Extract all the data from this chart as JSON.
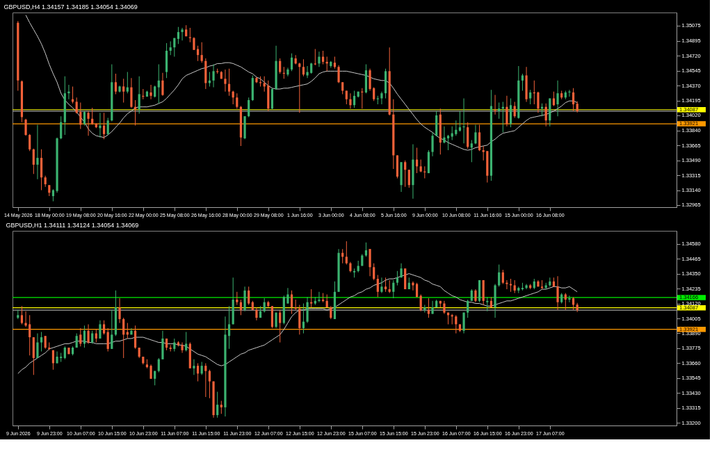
{
  "chart_data": [
    {
      "type": "candlestick",
      "title": "GBPUSD,H4  1.34157 1.34185 1.34054 1.34069",
      "categories": [
        "14 May 2026",
        null,
        null,
        null,
        null,
        null,
        null,
        null,
        "18 May 00:00",
        null,
        null,
        null,
        null,
        null,
        null,
        null,
        "19 May 08:00",
        null,
        null,
        null,
        null,
        null,
        null,
        null,
        "20 May 16:00",
        null,
        null,
        null,
        null,
        null,
        null,
        null,
        "22 May 00:00",
        null,
        null,
        null,
        null,
        null,
        null,
        null,
        "25 May 08:00",
        null,
        null,
        null,
        null,
        null,
        null,
        null,
        "26 May 16:00",
        null,
        null,
        null,
        null,
        null,
        null,
        null,
        "28 May 00:00",
        null,
        null,
        null,
        null,
        null,
        null,
        null,
        "29 May 08:00",
        null,
        null,
        null,
        null,
        null,
        null,
        null,
        "1 Jun 16:00",
        null,
        null,
        null,
        null,
        null,
        null,
        null,
        "3 Jun 00:00",
        null,
        null,
        null,
        null,
        null,
        null,
        null,
        "4 Jun 08:00",
        null,
        null,
        null,
        null,
        null,
        null,
        null,
        "5 Jun 16:00",
        null,
        null,
        null,
        null,
        null,
        null,
        null,
        "9 Jun 00:00",
        null,
        null,
        null,
        null,
        null,
        null,
        null,
        "10 Jun 08:00",
        null,
        null,
        null,
        null,
        null,
        null,
        null,
        "11 Jun 16:00",
        null,
        null,
        null,
        null,
        null,
        null,
        null,
        "15 Jun 00:00",
        null,
        null,
        null,
        null,
        null,
        null,
        null,
        "16 Jun 08:00",
        null,
        null,
        null,
        null,
        null,
        null,
        null
      ],
      "ohlc": [
        [
          1.3511,
          1.3513,
          1.3431,
          1.3443
        ],
        [
          1.3442,
          1.3443,
          1.3394,
          1.34
        ],
        [
          1.3397,
          1.3398,
          1.3378,
          1.3379
        ],
        [
          1.3379,
          1.338,
          1.336,
          1.3362
        ],
        [
          1.3362,
          1.3363,
          1.3333,
          1.3344
        ],
        [
          1.3344,
          1.3391,
          1.3327,
          1.3352
        ],
        [
          1.3352,
          1.3362,
          1.3314,
          1.3329
        ],
        [
          1.3329,
          1.3331,
          1.3318,
          1.3321
        ],
        [
          1.332,
          1.332,
          1.3307,
          1.3311
        ],
        [
          1.3307,
          1.3315,
          1.3301,
          1.3314
        ],
        [
          1.3313,
          1.3376,
          1.3311,
          1.3375
        ],
        [
          1.3375,
          1.3401,
          1.3374,
          1.3394
        ],
        [
          1.3394,
          1.3448,
          1.3379,
          1.3428
        ],
        [
          1.3428,
          1.3438,
          1.3421,
          1.343
        ],
        [
          1.3421,
          1.3436,
          1.3416,
          1.3418
        ],
        [
          1.3418,
          1.3423,
          1.3404,
          1.3405
        ],
        [
          1.3406,
          1.3417,
          1.3386,
          1.3391
        ],
        [
          1.3392,
          1.3407,
          1.339,
          1.3406
        ],
        [
          1.3405,
          1.3407,
          1.3378,
          1.3398
        ],
        [
          1.3398,
          1.3411,
          1.3391,
          1.3392
        ],
        [
          1.3392,
          1.3393,
          1.3387,
          1.3388
        ],
        [
          1.3387,
          1.3405,
          1.3376,
          1.339
        ],
        [
          1.339,
          1.3405,
          1.3374,
          1.338
        ],
        [
          1.338,
          1.3399,
          1.3379,
          1.3396
        ],
        [
          1.3396,
          1.3462,
          1.3395,
          1.3441
        ],
        [
          1.3441,
          1.3451,
          1.3427,
          1.343
        ],
        [
          1.343,
          1.3437,
          1.3429,
          1.3436
        ],
        [
          1.3436,
          1.3445,
          1.3417,
          1.343
        ],
        [
          1.343,
          1.3453,
          1.3428,
          1.3435
        ],
        [
          1.3435,
          1.3446,
          1.3411,
          1.3412
        ],
        [
          1.3412,
          1.342,
          1.339,
          1.3409
        ],
        [
          1.3409,
          1.3448,
          1.3404,
          1.3427
        ],
        [
          1.3425,
          1.3433,
          1.3421,
          1.3424
        ],
        [
          1.3424,
          1.3431,
          1.3424,
          1.343
        ],
        [
          1.3429,
          1.3438,
          1.3421,
          1.3425
        ],
        [
          1.3424,
          1.3437,
          1.3423,
          1.3436
        ],
        [
          1.3435,
          1.3462,
          1.3416,
          1.3443
        ],
        [
          1.3443,
          1.3452,
          1.3425,
          1.3426
        ],
        [
          1.3453,
          1.3487,
          1.3446,
          1.3478
        ],
        [
          1.3478,
          1.3489,
          1.3473,
          1.3482
        ],
        [
          1.3482,
          1.3493,
          1.3471,
          1.3493
        ],
        [
          1.3492,
          1.3506,
          1.3486,
          1.35
        ],
        [
          1.35,
          1.3505,
          1.349,
          1.3503
        ],
        [
          1.3503,
          1.3508,
          1.3495,
          1.3495
        ],
        [
          1.3494,
          1.3505,
          1.3488,
          1.3493
        ],
        [
          1.3493,
          1.3494,
          1.3479,
          1.3479
        ],
        [
          1.348,
          1.3484,
          1.3466,
          1.3473
        ],
        [
          1.3473,
          1.3488,
          1.3464,
          1.3466
        ],
        [
          1.3466,
          1.3469,
          1.3433,
          1.344
        ],
        [
          1.344,
          1.3453,
          1.3436,
          1.3443
        ],
        [
          1.3443,
          1.3462,
          1.3435,
          1.3454
        ],
        [
          1.3454,
          1.3457,
          1.3451,
          1.3453
        ],
        [
          1.3453,
          1.3454,
          1.3445,
          1.3445
        ],
        [
          1.3445,
          1.3456,
          1.343,
          1.3439
        ],
        [
          1.3439,
          1.3457,
          1.3425,
          1.343
        ],
        [
          1.343,
          1.3431,
          1.3415,
          1.3423
        ],
        [
          1.3423,
          1.3428,
          1.341,
          1.3412
        ],
        [
          1.3412,
          1.3413,
          1.3366,
          1.3376
        ],
        [
          1.3375,
          1.3401,
          1.3374,
          1.3401
        ],
        [
          1.3401,
          1.3423,
          1.34,
          1.342
        ],
        [
          1.342,
          1.3449,
          1.3419,
          1.3446
        ],
        [
          1.3446,
          1.3447,
          1.344,
          1.3441
        ],
        [
          1.3441,
          1.3448,
          1.3436,
          1.344
        ],
        [
          1.344,
          1.3448,
          1.343,
          1.3436
        ],
        [
          1.3437,
          1.3443,
          1.3407,
          1.341
        ],
        [
          1.341,
          1.3434,
          1.3409,
          1.3433
        ],
        [
          1.3433,
          1.3484,
          1.3432,
          1.3466
        ],
        [
          1.3466,
          1.3469,
          1.3451,
          1.3453
        ],
        [
          1.3452,
          1.3459,
          1.3445,
          1.3451
        ],
        [
          1.345,
          1.3458,
          1.3448,
          1.3456
        ],
        [
          1.3456,
          1.3475,
          1.3454,
          1.347
        ],
        [
          1.3469,
          1.3473,
          1.3462,
          1.3463
        ],
        [
          1.3463,
          1.3464,
          1.3405,
          1.3459
        ],
        [
          1.3459,
          1.3468,
          1.3448,
          1.345
        ],
        [
          1.3449,
          1.346,
          1.3446,
          1.3453
        ],
        [
          1.3452,
          1.3464,
          1.3451,
          1.3463
        ],
        [
          1.3463,
          1.348,
          1.3461,
          1.3462
        ],
        [
          1.3463,
          1.3477,
          1.3459,
          1.3471
        ],
        [
          1.3471,
          1.3478,
          1.3462,
          1.3465
        ],
        [
          1.3465,
          1.3471,
          1.3454,
          1.3463
        ],
        [
          1.346,
          1.3466,
          1.3458,
          1.3465
        ],
        [
          1.3464,
          1.3471,
          1.3457,
          1.3459
        ],
        [
          1.3459,
          1.3461,
          1.344,
          1.3441
        ],
        [
          1.3441,
          1.3441,
          1.3427,
          1.3431
        ],
        [
          1.3431,
          1.3431,
          1.3415,
          1.3421
        ],
        [
          1.3421,
          1.3428,
          1.341,
          1.3414
        ],
        [
          1.3414,
          1.3431,
          1.3411,
          1.3425
        ],
        [
          1.3424,
          1.343,
          1.3423,
          1.343
        ],
        [
          1.343,
          1.3434,
          1.341,
          1.3429
        ],
        [
          1.3429,
          1.3462,
          1.3428,
          1.3455
        ],
        [
          1.3455,
          1.3457,
          1.3431,
          1.3433
        ],
        [
          1.3434,
          1.3435,
          1.3419,
          1.3421
        ],
        [
          1.3421,
          1.3425,
          1.3415,
          1.3422
        ],
        [
          1.3422,
          1.343,
          1.3415,
          1.3428
        ],
        [
          1.3428,
          1.3457,
          1.3422,
          1.3454
        ],
        [
          1.3454,
          1.3482,
          1.3402,
          1.3403
        ],
        [
          1.3403,
          1.3421,
          1.3339,
          1.3355
        ],
        [
          1.3355,
          1.3355,
          1.3328,
          1.333
        ],
        [
          1.332,
          1.3347,
          1.3312,
          1.3347
        ],
        [
          1.3347,
          1.3349,
          1.3318,
          1.3338
        ],
        [
          1.3338,
          1.3338,
          1.3317,
          1.332
        ],
        [
          1.332,
          1.3368,
          1.3304,
          1.335
        ],
        [
          1.335,
          1.3364,
          1.3334,
          1.3342
        ],
        [
          1.3342,
          1.335,
          1.3335,
          1.3336
        ],
        [
          1.3336,
          1.3342,
          1.3328,
          1.3335
        ],
        [
          1.3334,
          1.3361,
          1.3334,
          1.3359
        ],
        [
          1.3359,
          1.3382,
          1.3354,
          1.3378
        ],
        [
          1.3378,
          1.3407,
          1.3378,
          1.3402
        ],
        [
          1.3403,
          1.341,
          1.3356,
          1.337
        ],
        [
          1.337,
          1.3389,
          1.3369,
          1.3376
        ],
        [
          1.3375,
          1.3379,
          1.3361,
          1.3378
        ],
        [
          1.3377,
          1.3389,
          1.3373,
          1.3381
        ],
        [
          1.338,
          1.3396,
          1.3378,
          1.3385
        ],
        [
          1.3384,
          1.3407,
          1.3383,
          1.3388
        ],
        [
          1.3388,
          1.3422,
          1.3369,
          1.3389
        ],
        [
          1.3388,
          1.3394,
          1.3363,
          1.3365
        ],
        [
          1.3364,
          1.3373,
          1.3347,
          1.3369
        ],
        [
          1.3369,
          1.3391,
          1.3368,
          1.3382
        ],
        [
          1.3382,
          1.3391,
          1.336,
          1.3361
        ],
        [
          1.3361,
          1.3366,
          1.3349,
          1.3359
        ],
        [
          1.336,
          1.336,
          1.3323,
          1.3331
        ],
        [
          1.3331,
          1.3432,
          1.3325,
          1.3413
        ],
        [
          1.3408,
          1.3426,
          1.3403,
          1.3407
        ],
        [
          1.3407,
          1.3417,
          1.3398,
          1.341
        ],
        [
          1.341,
          1.3418,
          1.3382,
          1.3412
        ],
        [
          1.3412,
          1.3425,
          1.3389,
          1.3392
        ],
        [
          1.3392,
          1.3422,
          1.3388,
          1.3414
        ],
        [
          1.3413,
          1.3418,
          1.3399,
          1.3401
        ],
        [
          1.3399,
          1.346,
          1.3398,
          1.3443
        ],
        [
          1.3443,
          1.3451,
          1.3431,
          1.3449
        ],
        [
          1.3449,
          1.3459,
          1.3418,
          1.3421
        ],
        [
          1.3422,
          1.3432,
          1.3415,
          1.3429
        ],
        [
          1.3429,
          1.3443,
          1.3415,
          1.3428
        ],
        [
          1.3429,
          1.343,
          1.3405,
          1.341
        ],
        [
          1.341,
          1.3416,
          1.3401,
          1.3412
        ],
        [
          1.3412,
          1.3416,
          1.3389,
          1.3396
        ],
        [
          1.3396,
          1.3422,
          1.3389,
          1.3422
        ],
        [
          1.3422,
          1.343,
          1.3413,
          1.3414
        ],
        [
          1.3415,
          1.3443,
          1.3401,
          1.3428
        ],
        [
          1.3428,
          1.3431,
          1.3421,
          1.3423
        ],
        [
          1.3423,
          1.3431,
          1.3421,
          1.3429
        ],
        [
          1.3429,
          1.3432,
          1.3424,
          1.343
        ],
        [
          1.3429,
          1.3434,
          1.3407,
          1.3415
        ],
        [
          1.34157,
          1.34185,
          1.34054,
          1.34069
        ]
      ],
      "series": [
        {
          "type": "line",
          "color": "#c8c8c8",
          "values": [
            null,
            null,
            1.352,
            1.3511,
            1.3503,
            1.3495,
            1.3486,
            1.3475,
            1.3462,
            1.3451,
            1.3441,
            1.3428,
            1.342,
            1.3415,
            1.3411,
            1.3406,
            1.34,
            1.3394,
            1.3386,
            1.3381,
            1.3378,
            1.3377,
            1.3376,
            1.3379,
            1.3383,
            1.3388,
            1.3393,
            1.3399,
            1.3404,
            1.3407,
            1.3411,
            1.3412,
            1.3412,
            1.3412,
            1.3413,
            1.3414,
            1.3416,
            1.3418,
            1.3422,
            1.3427,
            1.3432,
            1.3438,
            1.3445,
            1.3449,
            1.3451,
            1.3453,
            1.3455,
            1.3457,
            1.3458,
            1.346,
            1.3461,
            1.3463,
            1.3463,
            1.3464,
            1.3464,
            1.3463,
            1.3461,
            1.3459,
            1.3456,
            1.3453,
            1.3451,
            1.3447,
            1.3445,
            1.3441,
            1.3437,
            1.3434,
            1.3433,
            1.3433,
            1.3434,
            1.3434,
            1.3435,
            1.3436,
            1.3437,
            1.3438,
            1.3439,
            1.3442,
            1.3446,
            1.3451,
            1.3453,
            1.3454,
            1.3454,
            1.3454,
            1.3454,
            1.3454,
            1.3454,
            1.3453,
            1.3452,
            1.3451,
            1.345,
            1.3449,
            1.3447,
            1.3445,
            1.3444,
            1.3443,
            1.3443,
            1.344,
            1.3434,
            1.3427,
            1.3421,
            1.3415,
            1.3409,
            1.3403,
            1.3397,
            1.3392,
            1.3388,
            1.3385,
            1.3382,
            1.3378,
            1.3375,
            1.3373,
            1.337,
            1.3368,
            1.3366,
            1.3364,
            1.3362,
            1.3361,
            1.3362,
            1.3364,
            1.3365,
            1.3366,
            1.3367,
            1.3371,
            1.3374,
            1.3378,
            1.3381,
            1.3382,
            1.3383,
            1.3384,
            1.3388,
            1.3392,
            1.3396,
            1.3399,
            1.34,
            1.3401,
            1.3402,
            1.3403,
            1.3405,
            1.3407,
            1.341,
            1.3413,
            1.3417,
            1.3419,
            1.3419,
            1.3417
          ]
        }
      ],
      "ylim": [
        1.3294,
        1.3523
      ],
      "yticks": [
        1.35075,
        1.34895,
        {
          "value": 1.3472,
          "label": "1.34720"
        },
        1.34545,
        {
          "value": 1.3437,
          "label": "1.34370"
        },
        1.34195,
        {
          "value": 1.3402,
          "label": "1.34020"
        },
        {
          "value": 1.3384,
          "label": "1.33840"
        },
        1.33665,
        {
          "value": 1.3349,
          "label": "1.33490"
        },
        1.33315,
        {
          "value": 1.3314,
          "label": "1.33140"
        },
        1.32965
      ],
      "ref_lines": [
        {
          "axis": "y",
          "value": 1.34069,
          "color": "#a0a0a0"
        },
        {
          "axis": "y",
          "value": 1.34087,
          "label": "1.34087",
          "color": "#ffff00"
        },
        {
          "axis": "y",
          "value": 1.33921,
          "label": "1.33921",
          "color": "#ff9900"
        }
      ]
    },
    {
      "type": "candlestick",
      "title": "GBPUSD,H1  1.34111 1.34124 1.34054 1.34069",
      "categories": [
        "9 Jun 2026",
        null,
        null,
        null,
        null,
        null,
        null,
        null,
        "9 Jun 23:00",
        null,
        null,
        null,
        null,
        null,
        null,
        null,
        "10 Jun 07:00",
        null,
        null,
        null,
        null,
        null,
        null,
        null,
        "10 Jun 15:00",
        null,
        null,
        null,
        null,
        null,
        null,
        null,
        "10 Jun 23:00",
        null,
        null,
        null,
        null,
        null,
        null,
        null,
        "11 Jun 07:00",
        null,
        null,
        null,
        null,
        null,
        null,
        null,
        "11 Jun 15:00",
        null,
        null,
        null,
        null,
        null,
        null,
        null,
        "11 Jun 23:00",
        null,
        null,
        null,
        null,
        null,
        null,
        null,
        "12 Jun 07:00",
        null,
        null,
        null,
        null,
        null,
        null,
        null,
        "12 Jun 15:00",
        null,
        null,
        null,
        null,
        null,
        null,
        null,
        "12 Jun 23:00",
        null,
        null,
        null,
        null,
        null,
        null,
        null,
        "15 Jun 07:00",
        null,
        null,
        null,
        null,
        null,
        null,
        null,
        "15 Jun 15:00",
        null,
        null,
        null,
        null,
        null,
        null,
        null,
        "15 Jun 23:00",
        null,
        null,
        null,
        null,
        null,
        null,
        null,
        "16 Jun 07:00",
        null,
        null,
        null,
        null,
        null,
        null,
        null,
        "16 Jun 15:00",
        null,
        null,
        null,
        null,
        null,
        null,
        null,
        "16 Jun 23:00",
        null,
        null,
        null,
        null,
        null,
        null,
        null,
        "17 Jun 07:00",
        null,
        null,
        null,
        null,
        null,
        null,
        null
      ],
      "ohlc": [
        [
          1.3401,
          1.3407,
          1.34,
          1.3403
        ],
        [
          1.3403,
          1.341,
          1.3396,
          1.3397
        ],
        [
          1.3397,
          1.3406,
          1.3394,
          1.3395
        ],
        [
          1.3396,
          1.3403,
          1.3372,
          1.3386
        ],
        [
          1.3386,
          1.3386,
          1.3357,
          1.337
        ],
        [
          1.337,
          1.3389,
          1.337,
          1.3382
        ],
        [
          1.3382,
          1.339,
          1.3375,
          1.3386
        ],
        [
          1.3387,
          1.3387,
          1.3377,
          1.3378
        ],
        [
          1.3378,
          1.3382,
          1.3376,
          1.3377
        ],
        [
          1.3376,
          1.3376,
          1.3361,
          1.3366
        ],
        [
          1.3366,
          1.3375,
          1.3366,
          1.3371
        ],
        [
          1.337,
          1.3374,
          1.3367,
          1.3371
        ],
        [
          1.337,
          1.3379,
          1.3369,
          1.3378
        ],
        [
          1.3378,
          1.3378,
          1.3373,
          1.3373
        ],
        [
          1.3373,
          1.3379,
          1.3372,
          1.3378
        ],
        [
          1.3378,
          1.3389,
          1.3378,
          1.3387
        ],
        [
          1.3388,
          1.3393,
          1.3379,
          1.3381
        ],
        [
          1.3381,
          1.3395,
          1.3378,
          1.3391
        ],
        [
          1.3391,
          1.3396,
          1.3381,
          1.3382
        ],
        [
          1.3382,
          1.3391,
          1.3381,
          1.3389
        ],
        [
          1.3389,
          1.3392,
          1.3382,
          1.3385
        ],
        [
          1.3385,
          1.3399,
          1.3385,
          1.3396
        ],
        [
          1.3396,
          1.3399,
          1.3388,
          1.3389
        ],
        [
          1.339,
          1.3393,
          1.3375,
          1.3377
        ],
        [
          1.3377,
          1.3407,
          1.3377,
          1.3388
        ],
        [
          1.3388,
          1.3422,
          1.3387,
          1.3409
        ],
        [
          1.3409,
          1.3416,
          1.3397,
          1.34
        ],
        [
          1.34,
          1.3401,
          1.337,
          1.3388
        ],
        [
          1.339,
          1.3397,
          1.3385,
          1.3388
        ],
        [
          1.3388,
          1.3393,
          1.3388,
          1.3391
        ],
        [
          1.3391,
          1.3395,
          1.3377,
          1.3378
        ],
        [
          1.3378,
          1.3378,
          1.337,
          1.3371
        ],
        [
          1.3371,
          1.3371,
          1.3365,
          1.3366
        ],
        [
          1.3365,
          1.3369,
          1.3362,
          1.3363
        ],
        [
          1.3364,
          1.3365,
          1.3354,
          1.3354
        ],
        [
          1.3354,
          1.336,
          1.3349,
          1.336
        ],
        [
          1.336,
          1.337,
          1.3359,
          1.3369
        ],
        [
          1.3369,
          1.3391,
          1.3369,
          1.3385
        ],
        [
          1.3385,
          1.3385,
          1.3376,
          1.3378
        ],
        [
          1.3378,
          1.338,
          1.3375,
          1.3377
        ],
        [
          1.3377,
          1.3385,
          1.3375,
          1.3382
        ],
        [
          1.3382,
          1.3383,
          1.3379,
          1.338
        ],
        [
          1.338,
          1.3382,
          1.3374,
          1.3376
        ],
        [
          1.3376,
          1.339,
          1.3375,
          1.3381
        ],
        [
          1.3381,
          1.3382,
          1.3362,
          1.3362
        ],
        [
          1.3362,
          1.3369,
          1.3357,
          1.3364
        ],
        [
          1.3364,
          1.3366,
          1.3352,
          1.3358
        ],
        [
          1.3358,
          1.3367,
          1.3357,
          1.3364
        ],
        [
          1.3364,
          1.3366,
          1.334,
          1.336
        ],
        [
          1.336,
          1.3361,
          1.3339,
          1.3352
        ],
        [
          1.3352,
          1.3352,
          1.3324,
          1.3326
        ],
        [
          1.3326,
          1.3344,
          1.3324,
          1.3334
        ],
        [
          1.3334,
          1.3337,
          1.3327,
          1.3332
        ],
        [
          1.3332,
          1.3402,
          1.3325,
          1.3388
        ],
        [
          1.3387,
          1.341,
          1.3377,
          1.3396
        ],
        [
          1.3396,
          1.3432,
          1.3396,
          1.3415
        ],
        [
          1.3415,
          1.3421,
          1.3411,
          1.3413
        ],
        [
          1.3413,
          1.3415,
          1.3403,
          1.3407
        ],
        [
          1.3407,
          1.3425,
          1.3406,
          1.3422
        ],
        [
          1.3422,
          1.3425,
          1.3411,
          1.3412
        ],
        [
          1.3413,
          1.3414,
          1.3407,
          1.3407
        ],
        [
          1.3407,
          1.3409,
          1.3399,
          1.3401
        ],
        [
          1.3401,
          1.341,
          1.3401,
          1.3406
        ],
        [
          1.3406,
          1.3416,
          1.3405,
          1.3413
        ],
        [
          1.3413,
          1.3414,
          1.3409,
          1.341
        ],
        [
          1.341,
          1.341,
          1.3393,
          1.3394
        ],
        [
          1.3394,
          1.3405,
          1.3393,
          1.3405
        ],
        [
          1.3405,
          1.3407,
          1.3382,
          1.3397
        ],
        [
          1.3397,
          1.3418,
          1.3396,
          1.3417
        ],
        [
          1.3412,
          1.3424,
          1.3412,
          1.3419
        ],
        [
          1.3419,
          1.3422,
          1.3404,
          1.3409
        ],
        [
          1.3409,
          1.3415,
          1.3407,
          1.3408
        ],
        [
          1.3408,
          1.3411,
          1.3388,
          1.3393
        ],
        [
          1.3393,
          1.3412,
          1.3389,
          1.3398
        ],
        [
          1.3398,
          1.3417,
          1.3397,
          1.3413
        ],
        [
          1.3413,
          1.3423,
          1.3409,
          1.3412
        ],
        [
          1.3412,
          1.3417,
          1.3411,
          1.3414
        ],
        [
          1.3414,
          1.3421,
          1.3413,
          1.3415
        ],
        [
          1.3415,
          1.342,
          1.3413,
          1.3414
        ],
        [
          1.3414,
          1.3419,
          1.3409,
          1.3409
        ],
        [
          1.3409,
          1.341,
          1.34,
          1.3401
        ],
        [
          1.34,
          1.3429,
          1.34,
          1.3421
        ],
        [
          1.3421,
          1.3454,
          1.3421,
          1.3451
        ],
        [
          1.3451,
          1.3454,
          1.3443,
          1.3448
        ],
        [
          1.3448,
          1.346,
          1.3442,
          1.3443
        ],
        [
          1.3443,
          1.3444,
          1.3436,
          1.3437
        ],
        [
          1.3436,
          1.3439,
          1.3432,
          1.3437
        ],
        [
          1.3437,
          1.3445,
          1.3436,
          1.3441
        ],
        [
          1.3441,
          1.345,
          1.3441,
          1.3449
        ],
        [
          1.3449,
          1.3459,
          1.3448,
          1.3453
        ],
        [
          1.3454,
          1.3454,
          1.3433,
          1.344
        ],
        [
          1.344,
          1.3443,
          1.343,
          1.3431
        ],
        [
          1.3431,
          1.3434,
          1.3417,
          1.3421
        ],
        [
          1.3421,
          1.3432,
          1.342,
          1.3425
        ],
        [
          1.3425,
          1.3432,
          1.3421,
          1.3423
        ],
        [
          1.3423,
          1.343,
          1.342,
          1.3421
        ],
        [
          1.3421,
          1.343,
          1.3416,
          1.3428
        ],
        [
          1.3428,
          1.3437,
          1.3426,
          1.3432
        ],
        [
          1.3432,
          1.3443,
          1.3432,
          1.3439
        ],
        [
          1.3439,
          1.3439,
          1.3423,
          1.3423
        ],
        [
          1.3423,
          1.3432,
          1.3423,
          1.3428
        ],
        [
          1.3428,
          1.3429,
          1.3422,
          1.3426
        ],
        [
          1.3427,
          1.3428,
          1.3417,
          1.3417
        ],
        [
          1.3418,
          1.3419,
          1.3406,
          1.3407
        ],
        [
          1.3407,
          1.3411,
          1.3405,
          1.3409
        ],
        [
          1.3407,
          1.3416,
          1.3401,
          1.3404
        ],
        [
          1.3404,
          1.3414,
          1.3404,
          1.3409
        ],
        [
          1.3409,
          1.3415,
          1.3409,
          1.3414
        ],
        [
          1.3414,
          1.3414,
          1.3409,
          1.3412
        ],
        [
          1.3412,
          1.3414,
          1.3404,
          1.3405
        ],
        [
          1.3405,
          1.3405,
          1.3396,
          1.3403
        ],
        [
          1.3403,
          1.3404,
          1.3396,
          1.3402
        ],
        [
          1.3402,
          1.3403,
          1.3389,
          1.3396
        ],
        [
          1.3396,
          1.3396,
          1.339,
          1.3391
        ],
        [
          1.3391,
          1.3405,
          1.3389,
          1.3405
        ],
        [
          1.3405,
          1.3415,
          1.3401,
          1.3414
        ],
        [
          1.3414,
          1.3423,
          1.3414,
          1.3422
        ],
        [
          1.3422,
          1.3423,
          1.3413,
          1.3414
        ],
        [
          1.3414,
          1.343,
          1.3413,
          1.343
        ],
        [
          1.343,
          1.343,
          1.3411,
          1.3414
        ],
        [
          1.3413,
          1.3417,
          1.3406,
          1.3414
        ],
        [
          1.3414,
          1.3417,
          1.3409,
          1.3409
        ],
        [
          1.3409,
          1.3427,
          1.3401,
          1.3426
        ],
        [
          1.3426,
          1.3442,
          1.3425,
          1.3436
        ],
        [
          1.3436,
          1.3438,
          1.3427,
          1.3428
        ],
        [
          1.3428,
          1.343,
          1.3423,
          1.3427
        ],
        [
          1.3427,
          1.3431,
          1.3421,
          1.3426
        ],
        [
          1.3426,
          1.343,
          1.342,
          1.3422
        ],
        [
          1.3422,
          1.3425,
          1.342,
          1.3424
        ],
        [
          1.3423,
          1.3428,
          1.3422,
          1.3424
        ],
        [
          1.3424,
          1.3427,
          1.3423,
          1.3426
        ],
        [
          1.3426,
          1.3427,
          1.3423,
          1.3424
        ],
        [
          1.3424,
          1.3431,
          1.3423,
          1.3429
        ],
        [
          1.3429,
          1.343,
          1.3425,
          1.3425
        ],
        [
          1.3425,
          1.343,
          1.3423,
          1.3424
        ],
        [
          1.3424,
          1.3428,
          1.3423,
          1.3426
        ],
        [
          1.3426,
          1.3432,
          1.3425,
          1.3429
        ],
        [
          1.3429,
          1.3432,
          1.3425,
          1.3425
        ],
        [
          1.3425,
          1.3433,
          1.3407,
          1.3413
        ],
        [
          1.3413,
          1.342,
          1.3412,
          1.3419
        ],
        [
          1.3419,
          1.342,
          1.3407,
          1.3415
        ],
        [
          1.3415,
          1.3418,
          1.3413,
          1.3416
        ],
        [
          1.3416,
          1.3417,
          1.3407,
          1.3411
        ],
        [
          1.34111,
          1.34124,
          1.34054,
          1.34069
        ]
      ],
      "series": [
        {
          "type": "line",
          "color": "#c8c8c8",
          "values": [
            1.3358,
            1.3361,
            1.3363,
            1.3366,
            1.3368,
            1.337,
            1.3372,
            1.3374,
            1.3377,
            1.3378,
            1.3379,
            1.338,
            1.3381,
            1.3381,
            1.3382,
            1.3383,
            1.3383,
            1.3383,
            1.3382,
            1.3382,
            1.3381,
            1.3381,
            1.3381,
            1.3381,
            1.3382,
            1.3383,
            1.3383,
            1.3384,
            1.3385,
            1.3385,
            1.3386,
            1.3386,
            1.3386,
            1.3385,
            1.3384,
            1.3383,
            1.3382,
            1.3382,
            1.3381,
            1.3381,
            1.3381,
            1.338,
            1.338,
            1.3379,
            1.3377,
            1.3375,
            1.3373,
            1.3372,
            1.3371,
            1.3369,
            1.3367,
            1.3365,
            1.3364,
            1.3365,
            1.3367,
            1.3369,
            1.3371,
            1.3373,
            1.3374,
            1.3376,
            1.3377,
            1.3378,
            1.3379,
            1.338,
            1.3382,
            1.3384,
            1.3386,
            1.3388,
            1.3392,
            1.3397,
            1.3402,
            1.3405,
            1.3407,
            1.3407,
            1.3408,
            1.3408,
            1.3408,
            1.3408,
            1.3408,
            1.3407,
            1.3408,
            1.3409,
            1.3411,
            1.3413,
            1.3415,
            1.3417,
            1.3418,
            1.342,
            1.3421,
            1.3423,
            1.3424,
            1.3426,
            1.3427,
            1.3428,
            1.343,
            1.3431,
            1.3431,
            1.3432,
            1.3433,
            1.3434,
            1.3435,
            1.3434,
            1.3433,
            1.3432,
            1.343,
            1.3429,
            1.3427,
            1.3426,
            1.3425,
            1.3422,
            1.342,
            1.3418,
            1.3417,
            1.3415,
            1.3414,
            1.3413,
            1.3413,
            1.3412,
            1.3412,
            1.3411,
            1.341,
            1.341,
            1.3411,
            1.3412,
            1.3413,
            1.3414,
            1.3414,
            1.3415,
            1.3416,
            1.3417,
            1.3418,
            1.3419,
            1.342,
            1.3421,
            1.3423,
            1.3423,
            1.3424,
            1.3425,
            1.3425,
            1.3424,
            1.3424,
            1.3425,
            1.3423,
            1.3421
          ]
        }
      ],
      "ylim": [
        1.3318,
        1.3468
      ],
      "yticks": [
        {
          "value": 1.3458,
          "label": "1.34580"
        },
        1.34465,
        {
          "value": 1.3435,
          "label": "1.34350"
        },
        1.34235,
        {
          "value": 1.3412,
          "label": "1.34120"
        },
        1.34005,
        {
          "value": 1.3389,
          "label": "1.33890"
        },
        1.33775,
        {
          "value": 1.3366,
          "label": "1.33660"
        },
        1.33545,
        {
          "value": 1.3343,
          "label": "1.33430"
        },
        1.33315,
        {
          "value": 1.332,
          "label": "1.33200"
        }
      ],
      "ref_lines": [
        {
          "axis": "y",
          "value": 1.34069,
          "color": "#a0a0a0"
        },
        {
          "axis": "y",
          "value": 1.34166,
          "label": "1.34166",
          "color": "#00ee00"
        },
        {
          "axis": "y",
          "value": 1.34087,
          "label": "1.34087",
          "color": "#ffff00"
        },
        {
          "axis": "y",
          "value": 1.33921,
          "label": "1.33921",
          "color": "#ff9900"
        }
      ]
    }
  ]
}
